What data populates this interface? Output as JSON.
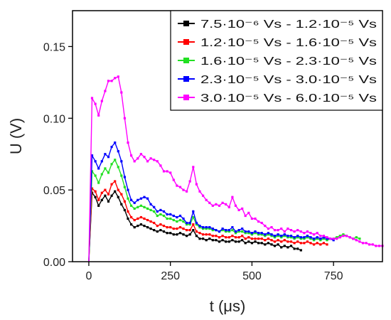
{
  "chart_data": {
    "type": "line",
    "xlabel": "t (μs)",
    "ylabel": "U (V)",
    "xlim": [
      -50,
      900
    ],
    "ylim": [
      0,
      0.175
    ],
    "xticks": [
      0,
      250,
      500,
      750
    ],
    "xtick_labels": [
      "0",
      "250",
      "500",
      "750"
    ],
    "yticks": [
      0,
      0.05,
      0.1,
      0.15
    ],
    "ytick_labels": [
      "0.00",
      "0.05",
      "0.10",
      "0.15"
    ],
    "grid": false,
    "legend_position": "top-right",
    "series": [
      {
        "name": "7.5·10⁻⁶ Vs - 1.2·10⁻⁵ Vs",
        "color": "#000000",
        "x": [
          0,
          10,
          20,
          30,
          40,
          50,
          60,
          70,
          80,
          90,
          100,
          110,
          120,
          130,
          140,
          150,
          160,
          170,
          180,
          190,
          200,
          210,
          220,
          230,
          240,
          250,
          260,
          270,
          280,
          290,
          300,
          310,
          320,
          330,
          340,
          350,
          360,
          370,
          380,
          390,
          400,
          410,
          420,
          430,
          440,
          450,
          460,
          470,
          480,
          490,
          500,
          510,
          520,
          530,
          540,
          550,
          560,
          570,
          580,
          590,
          600,
          610,
          620,
          630,
          640,
          650
        ],
        "y": [
          0.0,
          0.048,
          0.045,
          0.039,
          0.043,
          0.046,
          0.042,
          0.046,
          0.049,
          0.045,
          0.04,
          0.036,
          0.03,
          0.026,
          0.024,
          0.025,
          0.026,
          0.025,
          0.024,
          0.023,
          0.022,
          0.021,
          0.022,
          0.021,
          0.02,
          0.02,
          0.019,
          0.019,
          0.02,
          0.019,
          0.018,
          0.019,
          0.022,
          0.018,
          0.016,
          0.016,
          0.015,
          0.016,
          0.015,
          0.015,
          0.014,
          0.015,
          0.014,
          0.014,
          0.015,
          0.014,
          0.014,
          0.015,
          0.013,
          0.014,
          0.013,
          0.014,
          0.013,
          0.013,
          0.012,
          0.013,
          0.012,
          0.011,
          0.012,
          0.01,
          0.011,
          0.01,
          0.011,
          0.009,
          0.009,
          0.008
        ]
      },
      {
        "name": "1.2·10⁻⁵ Vs - 1.6·10⁻⁵ Vs",
        "color": "#ff0000",
        "x": [
          0,
          10,
          20,
          30,
          40,
          50,
          60,
          70,
          80,
          90,
          100,
          110,
          120,
          130,
          140,
          150,
          160,
          170,
          180,
          190,
          200,
          210,
          220,
          230,
          240,
          250,
          260,
          270,
          280,
          290,
          300,
          310,
          320,
          330,
          340,
          350,
          360,
          370,
          380,
          390,
          400,
          410,
          420,
          430,
          440,
          450,
          460,
          470,
          480,
          490,
          500,
          510,
          520,
          530,
          540,
          550,
          560,
          570,
          580,
          590,
          600,
          610,
          620,
          630,
          640,
          650,
          660,
          670,
          680,
          690,
          700,
          710,
          720,
          730
        ],
        "y": [
          0.0,
          0.051,
          0.049,
          0.043,
          0.048,
          0.05,
          0.047,
          0.054,
          0.056,
          0.05,
          0.047,
          0.042,
          0.035,
          0.031,
          0.029,
          0.03,
          0.031,
          0.03,
          0.029,
          0.028,
          0.027,
          0.025,
          0.026,
          0.025,
          0.024,
          0.024,
          0.023,
          0.023,
          0.024,
          0.023,
          0.022,
          0.022,
          0.026,
          0.021,
          0.02,
          0.019,
          0.019,
          0.019,
          0.018,
          0.018,
          0.017,
          0.018,
          0.017,
          0.017,
          0.018,
          0.017,
          0.017,
          0.018,
          0.016,
          0.017,
          0.016,
          0.016,
          0.016,
          0.016,
          0.015,
          0.016,
          0.015,
          0.014,
          0.015,
          0.014,
          0.015,
          0.014,
          0.014,
          0.013,
          0.014,
          0.013,
          0.013,
          0.014,
          0.013,
          0.012,
          0.013,
          0.012,
          0.013,
          0.012
        ]
      },
      {
        "name": "1.6·10⁻⁵ Vs - 2.3·10⁻⁵ Vs",
        "color": "#22e022",
        "x": [
          0,
          10,
          20,
          30,
          40,
          50,
          60,
          70,
          80,
          90,
          100,
          110,
          120,
          130,
          140,
          150,
          160,
          170,
          180,
          190,
          200,
          210,
          220,
          230,
          240,
          250,
          260,
          270,
          280,
          290,
          300,
          310,
          320,
          330,
          340,
          350,
          360,
          370,
          380,
          390,
          400,
          410,
          420,
          430,
          440,
          450,
          460,
          470,
          480,
          490,
          500,
          510,
          520,
          530,
          540,
          550,
          560,
          570,
          580,
          590,
          600,
          610,
          620,
          630,
          640,
          650,
          660,
          670,
          680,
          690,
          700,
          710,
          720,
          730,
          740,
          750,
          760,
          770,
          780,
          790,
          800,
          810,
          820,
          830
        ],
        "y": [
          0.0,
          0.063,
          0.06,
          0.055,
          0.061,
          0.065,
          0.062,
          0.068,
          0.071,
          0.066,
          0.06,
          0.052,
          0.044,
          0.039,
          0.037,
          0.038,
          0.039,
          0.038,
          0.037,
          0.036,
          0.035,
          0.032,
          0.033,
          0.032,
          0.03,
          0.03,
          0.029,
          0.028,
          0.029,
          0.028,
          0.026,
          0.026,
          0.031,
          0.026,
          0.024,
          0.023,
          0.023,
          0.023,
          0.022,
          0.022,
          0.021,
          0.022,
          0.021,
          0.021,
          0.022,
          0.02,
          0.021,
          0.021,
          0.02,
          0.02,
          0.019,
          0.02,
          0.019,
          0.019,
          0.018,
          0.019,
          0.018,
          0.017,
          0.018,
          0.017,
          0.018,
          0.017,
          0.017,
          0.016,
          0.017,
          0.016,
          0.016,
          0.017,
          0.016,
          0.015,
          0.016,
          0.015,
          0.016,
          0.015,
          0.016,
          0.016,
          0.017,
          0.018,
          0.019,
          0.018,
          0.017,
          0.016,
          0.017,
          0.016
        ]
      },
      {
        "name": "2.3·10⁻⁵ Vs - 3.0·10⁻⁵ Vs",
        "color": "#0000ff",
        "x": [
          0,
          10,
          20,
          30,
          40,
          50,
          60,
          70,
          80,
          90,
          100,
          110,
          120,
          130,
          140,
          150,
          160,
          170,
          180,
          190,
          200,
          210,
          220,
          230,
          240,
          250,
          260,
          270,
          280,
          290,
          300,
          310,
          320,
          330,
          340,
          350,
          360,
          370,
          380,
          390,
          400,
          410,
          420,
          430,
          440,
          450,
          460,
          470,
          480,
          490,
          500,
          510,
          520,
          530,
          540,
          550,
          560,
          570,
          580,
          590,
          600,
          610,
          620,
          630,
          640,
          650,
          660,
          670,
          680,
          690,
          700,
          710,
          720,
          730,
          740,
          750
        ],
        "y": [
          0.0,
          0.074,
          0.07,
          0.065,
          0.07,
          0.075,
          0.073,
          0.08,
          0.083,
          0.077,
          0.07,
          0.059,
          0.05,
          0.043,
          0.041,
          0.043,
          0.044,
          0.045,
          0.044,
          0.04,
          0.038,
          0.035,
          0.036,
          0.035,
          0.033,
          0.033,
          0.032,
          0.031,
          0.032,
          0.03,
          0.027,
          0.027,
          0.035,
          0.027,
          0.025,
          0.024,
          0.024,
          0.024,
          0.023,
          0.022,
          0.021,
          0.023,
          0.022,
          0.022,
          0.024,
          0.021,
          0.022,
          0.023,
          0.021,
          0.021,
          0.02,
          0.021,
          0.02,
          0.02,
          0.019,
          0.02,
          0.019,
          0.018,
          0.019,
          0.018,
          0.019,
          0.018,
          0.018,
          0.017,
          0.018,
          0.017,
          0.017,
          0.018,
          0.017,
          0.016,
          0.017,
          0.016,
          0.017,
          0.016,
          0.016,
          0.015
        ]
      },
      {
        "name": "3.0·10⁻⁵ Vs - 6.0·10⁻⁵ Vs",
        "color": "#ff00ff",
        "x": [
          0,
          10,
          20,
          30,
          40,
          50,
          60,
          70,
          80,
          90,
          100,
          110,
          120,
          130,
          140,
          150,
          160,
          170,
          180,
          190,
          200,
          210,
          220,
          230,
          240,
          250,
          260,
          270,
          280,
          290,
          300,
          310,
          320,
          330,
          340,
          350,
          360,
          370,
          380,
          390,
          400,
          410,
          420,
          430,
          440,
          450,
          460,
          470,
          480,
          490,
          500,
          510,
          520,
          530,
          540,
          550,
          560,
          570,
          580,
          590,
          600,
          610,
          620,
          630,
          640,
          650,
          660,
          670,
          680,
          690,
          700,
          710,
          720,
          730,
          740,
          750,
          760,
          770,
          780,
          790,
          800,
          810,
          820,
          830,
          840,
          850,
          860,
          870,
          880,
          890,
          900
        ],
        "y": [
          0.0,
          0.114,
          0.11,
          0.102,
          0.112,
          0.119,
          0.126,
          0.126,
          0.128,
          0.129,
          0.118,
          0.1,
          0.083,
          0.074,
          0.07,
          0.072,
          0.075,
          0.073,
          0.07,
          0.072,
          0.071,
          0.07,
          0.067,
          0.063,
          0.063,
          0.062,
          0.057,
          0.053,
          0.052,
          0.05,
          0.049,
          0.056,
          0.066,
          0.054,
          0.049,
          0.046,
          0.043,
          0.041,
          0.039,
          0.04,
          0.039,
          0.041,
          0.04,
          0.038,
          0.045,
          0.039,
          0.036,
          0.037,
          0.032,
          0.034,
          0.03,
          0.03,
          0.028,
          0.027,
          0.025,
          0.023,
          0.024,
          0.022,
          0.022,
          0.023,
          0.021,
          0.023,
          0.022,
          0.021,
          0.022,
          0.021,
          0.02,
          0.021,
          0.02,
          0.019,
          0.02,
          0.018,
          0.018,
          0.017,
          0.016,
          0.016,
          0.016,
          0.017,
          0.018,
          0.018,
          0.017,
          0.016,
          0.015,
          0.014,
          0.013,
          0.013,
          0.012,
          0.012,
          0.011,
          0.011,
          0.011
        ]
      }
    ]
  }
}
